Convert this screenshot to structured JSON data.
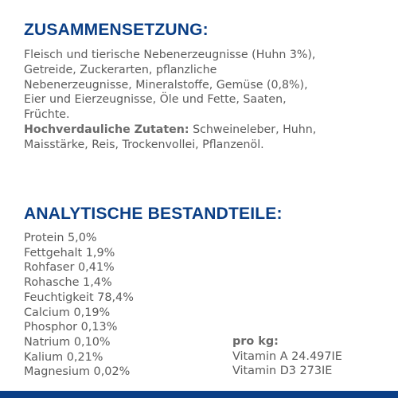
{
  "composition": {
    "heading": "ZUSAMMENSETZUNG:",
    "lines": [
      "Fleisch und tierische Nebenerzeugnisse (Huhn 3%),",
      "Getreide, Zuckerarten, pflanzliche",
      "Nebenerzeugnisse, Mineralstoffe, Gemüse (0,8%),",
      "Eier und Eierzeugnisse, Öle und Fette, Saaten,",
      "Früchte."
    ],
    "digestible_label": "Hochverdauliche Zutaten:",
    "digestible_line1": " Schweineleber, Huhn,",
    "digestible_line2": "Maisstärke, Reis, Trockenvollei, Pflanzenöl."
  },
  "analytical": {
    "heading": "ANALYTISCHE BESTANDTEILE:",
    "items": [
      "Protein 5,0%",
      "Fettgehalt 1,9%",
      "Rohfaser 0,41%",
      "Rohasche 1,4%",
      "Feuchtigkeit 78,4%",
      "Calcium 0,19%",
      "Phosphor 0,13%",
      "Natrium 0,10%",
      "Kalium 0,21%",
      "Magnesium 0,02%"
    ]
  },
  "per_kg": {
    "label": "pro kg:",
    "items": [
      "Vitamin A 24.497IE",
      "Vitamin D3 273IE"
    ]
  },
  "colors": {
    "heading": "#0b3f86",
    "text": "#5a5a5a",
    "bar": "#0b3f86"
  }
}
